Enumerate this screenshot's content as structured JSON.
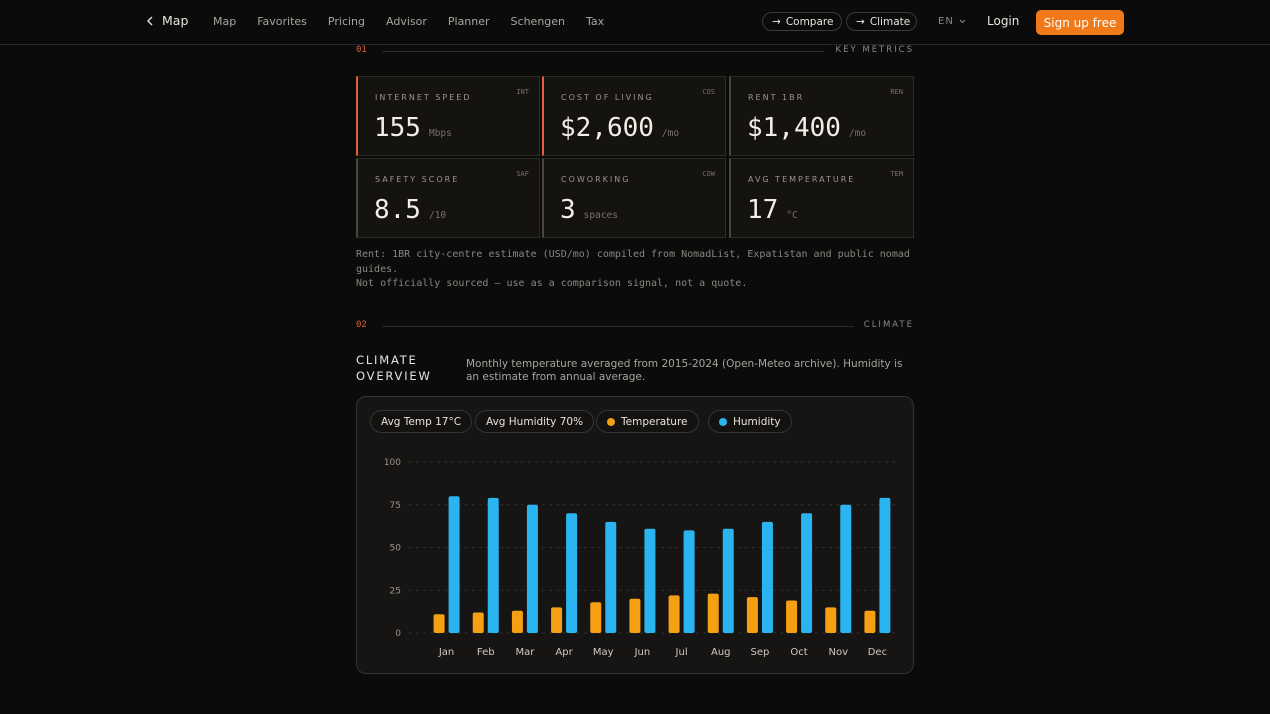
{
  "nav": {
    "back_label": "Map",
    "links": [
      "Map",
      "Favorites",
      "Pricing",
      "Advisor",
      "Planner",
      "Schengen",
      "Tax"
    ],
    "compare_label": "Compare",
    "climate_label": "Climate",
    "lang": "EN",
    "login_label": "Login",
    "signup_label": "Sign up free"
  },
  "section1": {
    "num": "01",
    "label": "KEY METRICS"
  },
  "metrics": [
    {
      "label": "INTERNET SPEED",
      "code": "INT",
      "value": "155",
      "unit": "Mbps",
      "accent": true
    },
    {
      "label": "COST OF LIVING",
      "code": "COS",
      "value": "$2,600",
      "unit": "/mo",
      "accent": true
    },
    {
      "label": "RENT 1BR",
      "code": "REN",
      "value": "$1,400",
      "unit": "/mo",
      "accent": false
    },
    {
      "label": "SAFETY SCORE",
      "code": "SAF",
      "value": "8.5",
      "unit": "/10",
      "accent": false
    },
    {
      "label": "COWORKING",
      "code": "COW",
      "value": "3",
      "unit": "spaces",
      "accent": false
    },
    {
      "label": "AVG TEMPERATURE",
      "code": "TEM",
      "value": "17",
      "unit": "°C",
      "accent": false
    }
  ],
  "note": {
    "line1": "Rent: 1BR city-centre estimate (USD/mo) compiled from NomadList, Expatistan and public nomad guides.",
    "line2": "Not officially sourced — use as a comparison signal, not a quote."
  },
  "section2": {
    "num": "02",
    "label": "CLIMATE"
  },
  "climate": {
    "title_line1": "CLIMATE",
    "title_line2": "OVERVIEW",
    "description": "Monthly temperature averaged from 2015-2024 (Open-Meteo archive). Humidity is an estimate from annual average.",
    "chips": {
      "avg_temp": "Avg Temp 17°C",
      "avg_humidity": "Avg Humidity 70%"
    }
  },
  "colors": {
    "accent": "#f07a1a",
    "section_accent": "#e2613a",
    "temperature": "#f5a012",
    "humidity": "#2ab4f0"
  },
  "chart_data": {
    "type": "bar",
    "categories": [
      "Jan",
      "Feb",
      "Mar",
      "Apr",
      "May",
      "Jun",
      "Jul",
      "Aug",
      "Sep",
      "Oct",
      "Nov",
      "Dec"
    ],
    "series": [
      {
        "name": "Temperature",
        "values": [
          11,
          12,
          13,
          15,
          18,
          20,
          22,
          23,
          21,
          19,
          15,
          13
        ]
      },
      {
        "name": "Humidity",
        "values": [
          80,
          79,
          75,
          70,
          65,
          61,
          60,
          61,
          65,
          70,
          75,
          79
        ]
      }
    ],
    "ylim": [
      0,
      100
    ],
    "yticks": [
      0,
      25,
      50,
      75,
      100
    ],
    "grid": true,
    "legend": "top-left"
  }
}
